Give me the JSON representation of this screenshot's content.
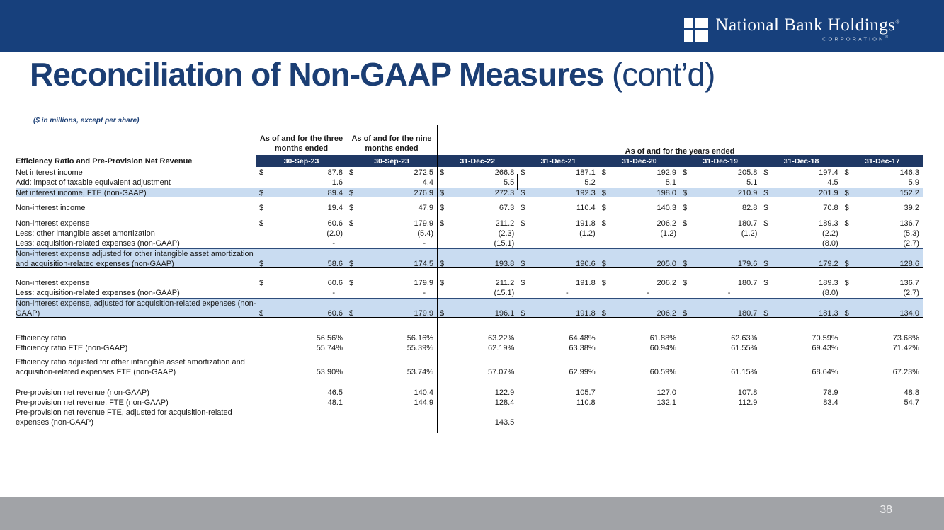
{
  "slide": {
    "logo": {
      "name": "National Bank Holdings",
      "name_mark": "®",
      "sub": "CORPORATION",
      "sub_mark": "®"
    },
    "title": {
      "main": "Reconciliation of Non-GAAP Measures",
      "suffix": " (cont’d)"
    },
    "page_number": "38"
  },
  "colors": {
    "topbar_navy": "#17407C",
    "title_navy": "#1B3E74",
    "header_band_navy": "#1F3864",
    "highlight_blue": "#C9DCF1",
    "footer_gray": "#A1A3A7"
  },
  "table": {
    "note": "($ in millions, except per share)",
    "section_label": "Efficiency Ratio and Pre-Provision Net Revenue",
    "group_headers": {
      "three_months": "As of and for the three months ended",
      "nine_months": "As of and for the nine months ended",
      "years": "As of and for the years ended"
    },
    "columns": [
      "30-Sep-23",
      "30-Sep-23",
      "31-Dec-22",
      "31-Dec-21",
      "31-Dec-20",
      "31-Dec-19",
      "31-Dec-18",
      "31-Dec-17"
    ],
    "blocks": [
      {
        "rows": [
          {
            "label": "Net interest income",
            "dollar": true,
            "highlight": false,
            "values": [
              "87.8",
              "272.5",
              "266.8",
              "187.1",
              "192.9",
              "205.8",
              "197.4",
              "146.3"
            ]
          },
          {
            "label": "Add: impact of taxable equivalent adjustment",
            "dollar": false,
            "highlight": false,
            "values": [
              "1.6",
              "4.4",
              "5.5",
              "5.2",
              "5.1",
              "5.1",
              "4.5",
              "5.9"
            ]
          },
          {
            "label": "Net interest income, FTE (non-GAAP)",
            "dollar": true,
            "highlight": true,
            "values": [
              "89.4",
              "276.9",
              "272.3",
              "192.3",
              "198.0",
              "210.9",
              "201.9",
              "152.2"
            ]
          }
        ]
      },
      {
        "rows": [
          {
            "label": "Non-interest income",
            "dollar": true,
            "highlight": false,
            "values": [
              "19.4",
              "47.9",
              "67.3",
              "110.4",
              "140.3",
              "82.8",
              "70.8",
              "39.2"
            ]
          }
        ]
      },
      {
        "rows": [
          {
            "label": "Non-interest expense",
            "dollar": true,
            "highlight": false,
            "values": [
              "60.6",
              "179.9",
              "211.2",
              "191.8",
              "206.2",
              "180.7",
              "189.3",
              "136.7"
            ]
          },
          {
            "label": "Less: other intangible asset amortization",
            "dollar": false,
            "highlight": false,
            "values": [
              "(2.0)",
              "(5.4)",
              "(2.3)",
              "(1.2)",
              "(1.2)",
              "(1.2)",
              "(2.2)",
              "(5.3)"
            ]
          },
          {
            "label": "Less: acquisition-related expenses (non-GAAP)",
            "dollar": false,
            "highlight": false,
            "values": [
              "-",
              "-",
              "(15.1)",
              "",
              "",
              "",
              "(8.0)",
              "(2.7)"
            ]
          },
          {
            "label": "Non-interest expense adjusted for other intangible asset amortization",
            "label2": "and acquisition-related expenses (non-GAAP)",
            "dollar": true,
            "highlight": true,
            "values": [
              "58.6",
              "174.5",
              "193.8",
              "190.6",
              "205.0",
              "179.6",
              "179.2",
              "128.6"
            ]
          }
        ]
      },
      {
        "rows": [
          {
            "label": "Non-interest expense",
            "dollar": true,
            "highlight": false,
            "values": [
              "60.6",
              "179.9",
              "211.2",
              "191.8",
              "206.2",
              "180.7",
              "189.3",
              "136.7"
            ]
          },
          {
            "label": "Less: acquisition-related expenses (non-GAAP)",
            "dollar": false,
            "highlight": false,
            "values": [
              "-",
              "-",
              "(15.1)",
              "-",
              "-",
              "-",
              "(8.0)",
              "(2.7)"
            ]
          },
          {
            "label": "Non-interest expense, adjusted for acquisition-related expenses (non-",
            "label2": "GAAP)",
            "dollar": true,
            "highlight": true,
            "values": [
              "60.6",
              "179.9",
              "196.1",
              "191.8",
              "206.2",
              "180.7",
              "181.3",
              "134.0"
            ]
          }
        ]
      },
      {
        "rows": [
          {
            "label": "Efficiency ratio",
            "dollar": false,
            "highlight": false,
            "values": [
              "56.56%",
              "56.16%",
              "63.22%",
              "64.48%",
              "61.88%",
              "62.63%",
              "70.59%",
              "73.68%"
            ]
          },
          {
            "label": "Efficiency ratio FTE (non-GAAP)",
            "dollar": false,
            "highlight": false,
            "values": [
              "55.74%",
              "55.39%",
              "62.19%",
              "63.38%",
              "60.94%",
              "61.55%",
              "69.43%",
              "71.42%"
            ]
          }
        ]
      },
      {
        "rows": [
          {
            "label": "Efficiency ratio adjusted for other intangible asset amortization and",
            "label2": "acquisition-related expenses FTE (non-GAAP)",
            "dollar": false,
            "highlight": false,
            "values": [
              "53.90%",
              "53.74%",
              "57.07%",
              "62.99%",
              "60.59%",
              "61.15%",
              "68.64%",
              "67.23%"
            ]
          }
        ]
      },
      {
        "rows": [
          {
            "label": "Pre-provision net revenue (non-GAAP)",
            "dollar": false,
            "highlight": false,
            "values": [
              "46.5",
              "140.4",
              "122.9",
              "105.7",
              "127.0",
              "107.8",
              "78.9",
              "48.8"
            ]
          },
          {
            "label": "Pre-provision net revenue, FTE (non-GAAP)",
            "dollar": false,
            "highlight": false,
            "values": [
              "48.1",
              "144.9",
              "128.4",
              "110.8",
              "132.1",
              "112.9",
              "83.4",
              "54.7"
            ]
          },
          {
            "label": "Pre-provision net revenue FTE, adjusted for acquisition-related",
            "label2": "expenses (non-GAAP)",
            "dollar": false,
            "highlight": false,
            "values": [
              "",
              "",
              "143.5",
              "",
              "",
              "",
              "",
              ""
            ]
          }
        ]
      }
    ]
  }
}
